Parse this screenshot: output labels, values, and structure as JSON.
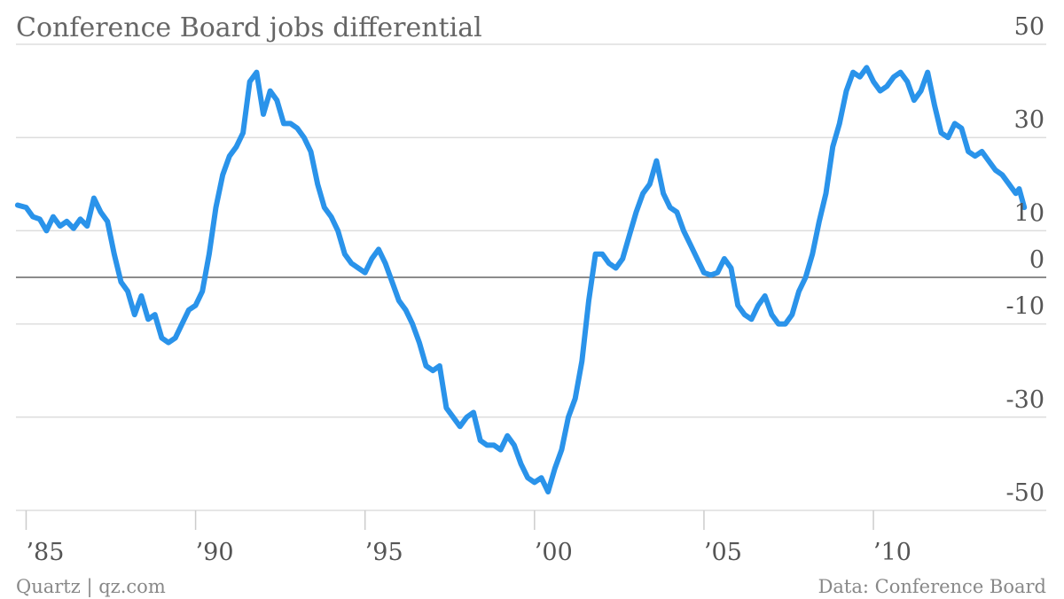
{
  "chart_data": {
    "type": "line",
    "title": "Conference Board jobs differential",
    "y_axis": {
      "side": "right",
      "ylim": [
        -50,
        50
      ],
      "ticks": [
        50,
        30,
        10,
        0,
        -10,
        -30,
        -50
      ],
      "tick_labels": [
        "50",
        "30",
        "10",
        "0",
        "-10",
        "-30",
        "-50"
      ]
    },
    "x_axis": {
      "xlim": [
        1984.7,
        2015.1
      ],
      "ticks": [
        1985,
        1990,
        1995,
        2000,
        2005,
        2010
      ],
      "tick_labels": [
        "’85",
        "’90",
        "’95",
        "’00",
        "’05",
        "’10"
      ]
    },
    "grid": true,
    "series": [
      {
        "color": "#2a93ea",
        "points": [
          [
            1984.75,
            15.5
          ],
          [
            1985.0,
            15.0
          ],
          [
            1985.2,
            13.0
          ],
          [
            1985.4,
            12.5
          ],
          [
            1985.6,
            10.0
          ],
          [
            1985.8,
            13.0
          ],
          [
            1986.0,
            11.0
          ],
          [
            1986.2,
            12.0
          ],
          [
            1986.4,
            10.5
          ],
          [
            1986.6,
            12.5
          ],
          [
            1986.8,
            11.0
          ],
          [
            1987.0,
            17.0
          ],
          [
            1987.2,
            14.0
          ],
          [
            1987.4,
            12.0
          ],
          [
            1987.6,
            5.0
          ],
          [
            1987.8,
            -1.0
          ],
          [
            1988.0,
            -3.0
          ],
          [
            1988.2,
            -8.0
          ],
          [
            1988.4,
            -4.0
          ],
          [
            1988.6,
            -9.0
          ],
          [
            1988.8,
            -8.0
          ],
          [
            1989.0,
            -13.0
          ],
          [
            1989.2,
            -14.0
          ],
          [
            1989.4,
            -13.0
          ],
          [
            1989.6,
            -10.0
          ],
          [
            1989.8,
            -7.0
          ],
          [
            1990.0,
            -6.0
          ],
          [
            1990.2,
            -3.0
          ],
          [
            1990.4,
            5.0
          ],
          [
            1990.6,
            15.0
          ],
          [
            1990.8,
            22.0
          ],
          [
            1991.0,
            26.0
          ],
          [
            1991.2,
            28.0
          ],
          [
            1991.4,
            31.0
          ],
          [
            1991.6,
            42.0
          ],
          [
            1991.8,
            44.0
          ],
          [
            1992.0,
            35.0
          ],
          [
            1992.2,
            40.0
          ],
          [
            1992.4,
            38.0
          ],
          [
            1992.6,
            33.0
          ],
          [
            1992.8,
            33.0
          ],
          [
            1993.0,
            32.0
          ],
          [
            1993.2,
            30.0
          ],
          [
            1993.4,
            27.0
          ],
          [
            1993.6,
            20.0
          ],
          [
            1993.8,
            15.0
          ],
          [
            1994.0,
            13.0
          ],
          [
            1994.2,
            10.0
          ],
          [
            1994.4,
            5.0
          ],
          [
            1994.6,
            3.0
          ],
          [
            1994.8,
            2.0
          ],
          [
            1995.0,
            1.0
          ],
          [
            1995.2,
            4.0
          ],
          [
            1995.4,
            6.0
          ],
          [
            1995.6,
            3.0
          ],
          [
            1995.8,
            -1.0
          ],
          [
            1996.0,
            -5.0
          ],
          [
            1996.2,
            -7.0
          ],
          [
            1996.4,
            -10.0
          ],
          [
            1996.6,
            -14.0
          ],
          [
            1996.8,
            -19.0
          ],
          [
            1997.0,
            -20.0
          ],
          [
            1997.2,
            -19.0
          ],
          [
            1997.4,
            -28.0
          ],
          [
            1997.6,
            -30.0
          ],
          [
            1997.8,
            -32.0
          ],
          [
            1998.0,
            -30.0
          ],
          [
            1998.2,
            -29.0
          ],
          [
            1998.4,
            -35.0
          ],
          [
            1998.6,
            -36.0
          ],
          [
            1998.8,
            -36.0
          ],
          [
            1999.0,
            -37.0
          ],
          [
            1999.2,
            -34.0
          ],
          [
            1999.4,
            -36.0
          ],
          [
            1999.6,
            -40.0
          ],
          [
            1999.8,
            -43.0
          ],
          [
            2000.0,
            -44.0
          ],
          [
            2000.2,
            -43.0
          ],
          [
            2000.4,
            -46.0
          ],
          [
            2000.6,
            -41.0
          ],
          [
            2000.8,
            -37.0
          ],
          [
            2001.0,
            -30.0
          ],
          [
            2001.2,
            -26.0
          ],
          [
            2001.4,
            -18.0
          ],
          [
            2001.6,
            -5.0
          ],
          [
            2001.8,
            5.0
          ],
          [
            2002.0,
            5.0
          ],
          [
            2002.2,
            3.0
          ],
          [
            2002.4,
            2.0
          ],
          [
            2002.6,
            4.0
          ],
          [
            2002.8,
            9.0
          ],
          [
            2003.0,
            14.0
          ],
          [
            2003.2,
            18.0
          ],
          [
            2003.4,
            20.0
          ],
          [
            2003.6,
            25.0
          ],
          [
            2003.8,
            18.0
          ],
          [
            2004.0,
            15.0
          ],
          [
            2004.2,
            14.0
          ],
          [
            2004.4,
            10.0
          ],
          [
            2004.6,
            7.0
          ],
          [
            2004.8,
            4.0
          ],
          [
            2005.0,
            1.0
          ],
          [
            2005.2,
            0.5
          ],
          [
            2005.4,
            1.0
          ],
          [
            2005.6,
            4.0
          ],
          [
            2005.8,
            2.0
          ],
          [
            2006.0,
            -6.0
          ],
          [
            2006.2,
            -8.0
          ],
          [
            2006.4,
            -9.0
          ],
          [
            2006.6,
            -6.0
          ],
          [
            2006.8,
            -4.0
          ],
          [
            2007.0,
            -8.0
          ],
          [
            2007.2,
            -10.0
          ],
          [
            2007.4,
            -10.0
          ],
          [
            2007.6,
            -8.0
          ],
          [
            2007.8,
            -3.0
          ],
          [
            2008.0,
            0.0
          ],
          [
            2008.2,
            5.0
          ],
          [
            2008.4,
            12.0
          ],
          [
            2008.6,
            18.0
          ],
          [
            2008.8,
            28.0
          ],
          [
            2009.0,
            33.0
          ],
          [
            2009.2,
            40.0
          ],
          [
            2009.4,
            44.0
          ],
          [
            2009.6,
            43.0
          ],
          [
            2009.8,
            45.0
          ],
          [
            2010.0,
            42.0
          ],
          [
            2010.2,
            40.0
          ],
          [
            2010.4,
            41.0
          ],
          [
            2010.6,
            43.0
          ],
          [
            2010.8,
            44.0
          ],
          [
            2011.0,
            42.0
          ],
          [
            2011.2,
            38.0
          ],
          [
            2011.4,
            40.0
          ],
          [
            2011.6,
            44.0
          ],
          [
            2011.8,
            37.0
          ],
          [
            2012.0,
            31.0
          ],
          [
            2012.2,
            30.0
          ],
          [
            2012.4,
            33.0
          ],
          [
            2012.6,
            32.0
          ],
          [
            2012.8,
            27.0
          ],
          [
            2013.0,
            26.0
          ],
          [
            2013.2,
            27.0
          ],
          [
            2013.4,
            25.0
          ],
          [
            2013.6,
            23.0
          ],
          [
            2013.8,
            22.0
          ],
          [
            2014.0,
            20.0
          ],
          [
            2014.2,
            18.0
          ],
          [
            2014.3,
            19.0
          ],
          [
            2014.45,
            15.0
          ]
        ]
      }
    ]
  },
  "footer": {
    "source_left": "Quartz | qz.com",
    "source_right": "Data: Conference Board"
  },
  "colors": {
    "line": "#2a93ea",
    "grid": "#dddddd",
    "zero_line": "#666666",
    "text": "#555555"
  }
}
